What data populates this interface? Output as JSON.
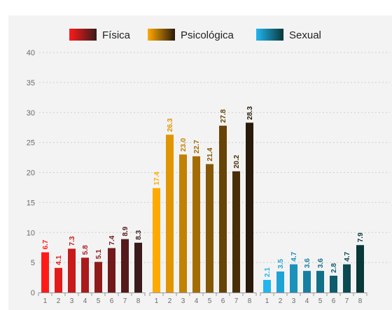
{
  "chart_data": {
    "type": "bar",
    "ylim": [
      0,
      40
    ],
    "yticks": [
      0,
      5,
      10,
      15,
      20,
      25,
      30,
      35,
      40
    ],
    "grid": true,
    "legend_position": "top",
    "categories": [
      "1",
      "2",
      "3",
      "4",
      "5",
      "6",
      "7",
      "8"
    ],
    "series": [
      {
        "name": "Física",
        "values": [
          6.7,
          4.1,
          7.3,
          5.8,
          5.1,
          7.4,
          8.9,
          8.3
        ],
        "labels": [
          "6.7",
          "4.1",
          "7.3",
          "5.8",
          "5.1",
          "7.4",
          "8.9",
          "8.3"
        ],
        "color_start": "#ff1a1a",
        "color_end": "#3a1a1a"
      },
      {
        "name": "Psicológica",
        "values": [
          17.4,
          26.3,
          23.0,
          22.7,
          21.4,
          27.8,
          20.2,
          28.3
        ],
        "labels": [
          "17.4",
          "26.3",
          "23.0",
          "22.7",
          "21.4",
          "27.8",
          "20.2",
          "28.3"
        ],
        "color_start": "#ffaa00",
        "color_end": "#2a1a0a"
      },
      {
        "name": "Sexual",
        "values": [
          2.1,
          3.5,
          4.7,
          3.6,
          3.6,
          2.8,
          4.7,
          7.9
        ],
        "labels": [
          "2.1",
          "3.5",
          "4.7",
          "3.6",
          "3.6",
          "2.8",
          "4.7",
          "7.9"
        ],
        "color_start": "#22b5f0",
        "color_end": "#083838"
      }
    ]
  }
}
